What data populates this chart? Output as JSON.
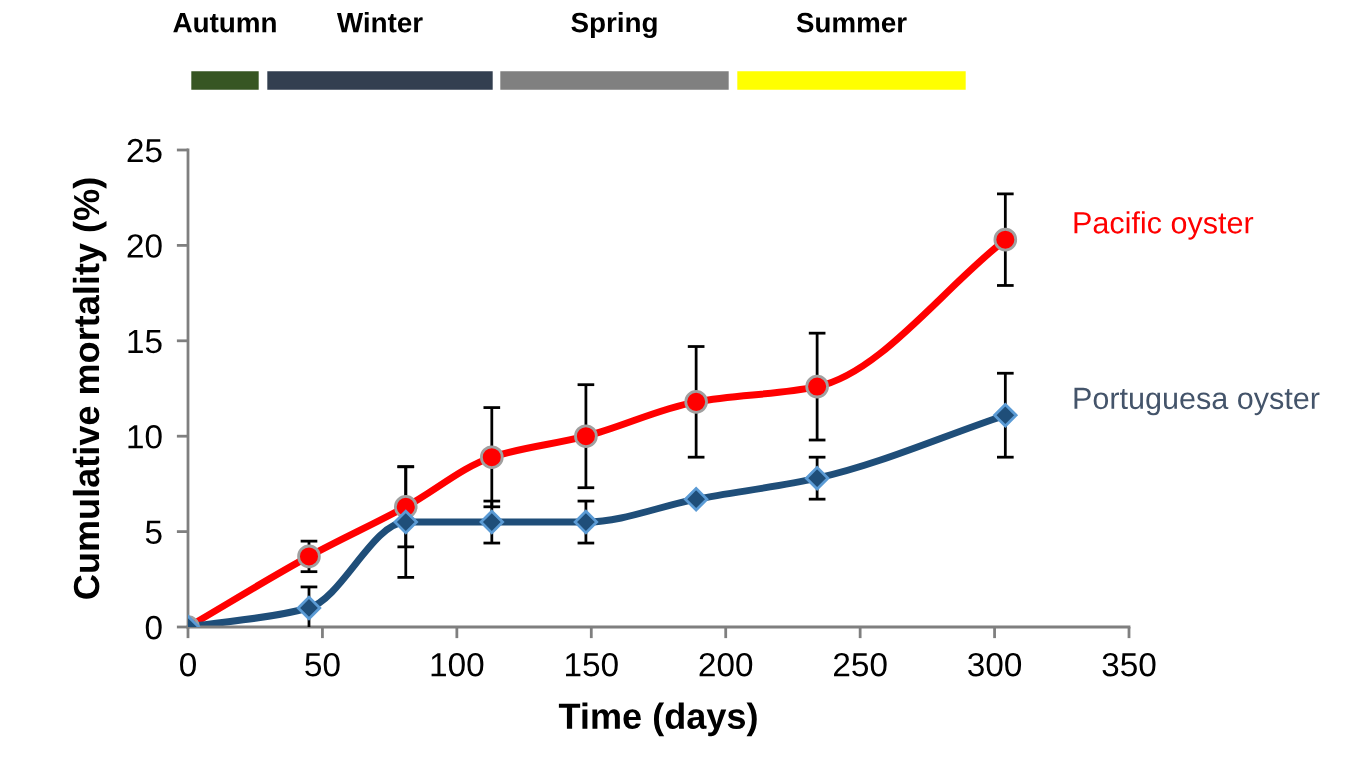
{
  "chart_data": {
    "type": "line",
    "xlabel": "Time (days)",
    "ylabel": "Cumulative mortality (%)",
    "xlim": [
      0,
      350
    ],
    "xticks": [
      0,
      50,
      100,
      150,
      200,
      250,
      300,
      350
    ],
    "ylim": [
      0,
      25
    ],
    "yticks": [
      0,
      5,
      10,
      15,
      20,
      25
    ],
    "x": [
      0,
      45,
      81,
      113,
      148,
      189,
      234,
      304
    ],
    "series": [
      {
        "name": "Pacific oyster",
        "color": "#ff0000",
        "marker": "circle",
        "values": [
          0,
          3.7,
          6.3,
          8.9,
          10.0,
          11.8,
          12.6,
          20.3
        ],
        "errors": [
          null,
          0.8,
          2.1,
          2.6,
          2.7,
          2.9,
          2.8,
          2.4
        ]
      },
      {
        "name": "Portuguesa oyster",
        "color": "#1f4e79",
        "marker": "diamond",
        "values": [
          0,
          1.0,
          5.5,
          5.5,
          5.5,
          6.7,
          7.8,
          11.1
        ],
        "errors": [
          null,
          1.1,
          2.9,
          1.1,
          1.1,
          null,
          1.1,
          2.2
        ]
      }
    ],
    "annotations": [
      "Autumn",
      "Winter",
      "Spring",
      "Summer"
    ],
    "legend": false,
    "grid": false
  }
}
